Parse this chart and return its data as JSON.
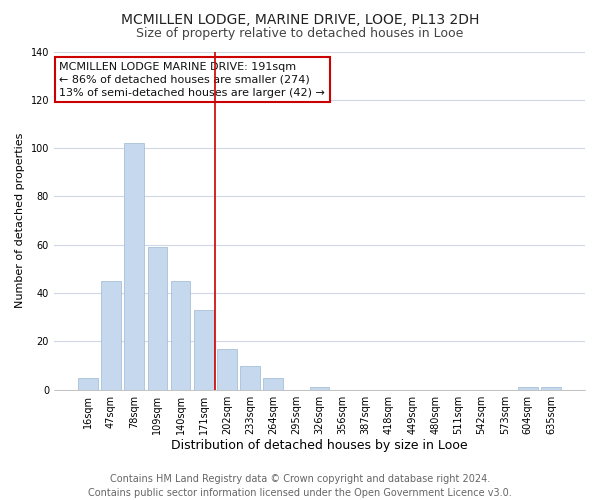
{
  "title": "MCMILLEN LODGE, MARINE DRIVE, LOOE, PL13 2DH",
  "subtitle": "Size of property relative to detached houses in Looe",
  "xlabel": "Distribution of detached houses by size in Looe",
  "ylabel": "Number of detached properties",
  "bar_labels": [
    "16sqm",
    "47sqm",
    "78sqm",
    "109sqm",
    "140sqm",
    "171sqm",
    "202sqm",
    "233sqm",
    "264sqm",
    "295sqm",
    "326sqm",
    "356sqm",
    "387sqm",
    "418sqm",
    "449sqm",
    "480sqm",
    "511sqm",
    "542sqm",
    "573sqm",
    "604sqm",
    "635sqm"
  ],
  "bar_values": [
    5,
    45,
    102,
    59,
    45,
    33,
    17,
    10,
    5,
    0,
    1,
    0,
    0,
    0,
    0,
    0,
    0,
    0,
    0,
    1,
    1
  ],
  "highlight_index": 5,
  "highlight_line_color": "#cc0000",
  "normal_color": "#c5d8ed",
  "bar_edge_color": "#a8c0d8",
  "ylim": [
    0,
    140
  ],
  "yticks": [
    0,
    20,
    40,
    60,
    80,
    100,
    120,
    140
  ],
  "annotation_title": "MCMILLEN LODGE MARINE DRIVE: 191sqm",
  "annotation_line1": "← 86% of detached houses are smaller (274)",
  "annotation_line2": "13% of semi-detached houses are larger (42) →",
  "footer1": "Contains HM Land Registry data © Crown copyright and database right 2024.",
  "footer2": "Contains public sector information licensed under the Open Government Licence v3.0.",
  "bg_color": "#ffffff",
  "plot_bg_color": "#ffffff",
  "grid_color": "#d0d8e8",
  "annotation_box_facecolor": "#ffffff",
  "annotation_border_color": "#cc0000",
  "title_fontsize": 10,
  "subtitle_fontsize": 9,
  "xlabel_fontsize": 9,
  "ylabel_fontsize": 8,
  "tick_fontsize": 7,
  "footer_fontsize": 7,
  "annotation_fontsize": 8
}
